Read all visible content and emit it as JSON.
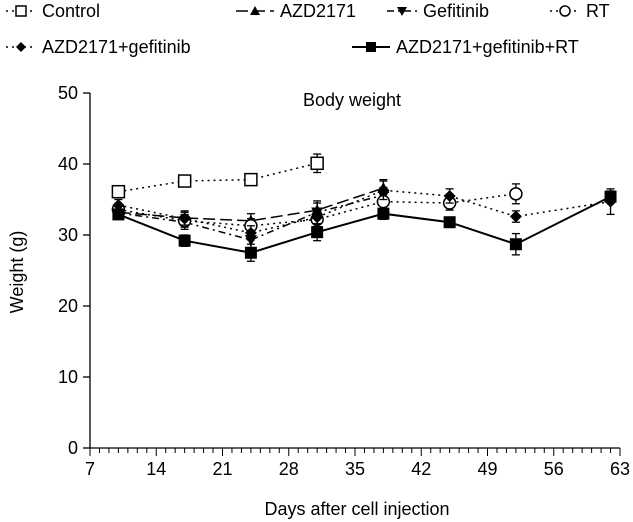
{
  "chart_data": {
    "type": "line",
    "title": "Body weight",
    "xlabel": "Days after cell injection",
    "ylabel": "Weight (g)",
    "xlim": [
      7,
      63
    ],
    "ylim": [
      0,
      50
    ],
    "xticks": [
      7,
      14,
      21,
      28,
      35,
      42,
      49,
      56,
      63
    ],
    "yticks": [
      0,
      10,
      20,
      30,
      40,
      50
    ],
    "grid": false,
    "legend_position": "top",
    "series": [
      {
        "name": "Control",
        "dash": "dotted",
        "marker": "square-open",
        "x": [
          10,
          17,
          24,
          31
        ],
        "y": [
          36.1,
          37.6,
          37.8,
          40.1
        ],
        "err": [
          0.8,
          0.6,
          0.8,
          1.3
        ]
      },
      {
        "name": "AZD2171",
        "dash": "longdash",
        "marker": "triangle-up",
        "x": [
          10,
          17,
          24,
          31,
          38
        ],
        "y": [
          33.2,
          32.4,
          32.0,
          33.5,
          36.6
        ],
        "err": [
          0.8,
          1.0,
          1.0,
          1.3,
          1.2
        ]
      },
      {
        "name": "Gefitinib",
        "dash": "dashdot",
        "marker": "triangle-down",
        "x": [
          10,
          17,
          24,
          31,
          38
        ],
        "y": [
          33.1,
          31.8,
          29.3,
          33.2,
          35.6
        ],
        "err": [
          0.8,
          1.0,
          1.3,
          1.3,
          1.1
        ]
      },
      {
        "name": "RT",
        "dash": "dotted",
        "marker": "circle-open",
        "x": [
          10,
          17,
          24,
          31,
          38,
          45,
          52
        ],
        "y": [
          33.6,
          32.0,
          31.3,
          32.2,
          34.7,
          34.5,
          35.8
        ],
        "err": [
          0.8,
          0.9,
          1.0,
          1.0,
          1.0,
          1.0,
          1.4
        ]
      },
      {
        "name": "AZD2171+gefitinib",
        "dash": "dotted",
        "marker": "diamond",
        "x": [
          10,
          17,
          24,
          31,
          38,
          45,
          52,
          62
        ],
        "y": [
          34.2,
          32.3,
          30.3,
          32.5,
          36.3,
          35.5,
          32.6,
          34.7
        ],
        "err": [
          0.8,
          0.9,
          1.0,
          1.0,
          1.3,
          1.0,
          0.8,
          1.8
        ]
      },
      {
        "name": "AZD2171+gefitinib+RT",
        "dash": "solid",
        "marker": "square-filled",
        "x": [
          10,
          17,
          24,
          31,
          38,
          45,
          52,
          62
        ],
        "y": [
          32.9,
          29.2,
          27.5,
          30.4,
          33.0,
          31.8,
          28.7,
          35.4
        ],
        "err": [
          0.7,
          0.8,
          1.2,
          1.2,
          0.8,
          0.7,
          1.5,
          0.8
        ]
      }
    ]
  }
}
